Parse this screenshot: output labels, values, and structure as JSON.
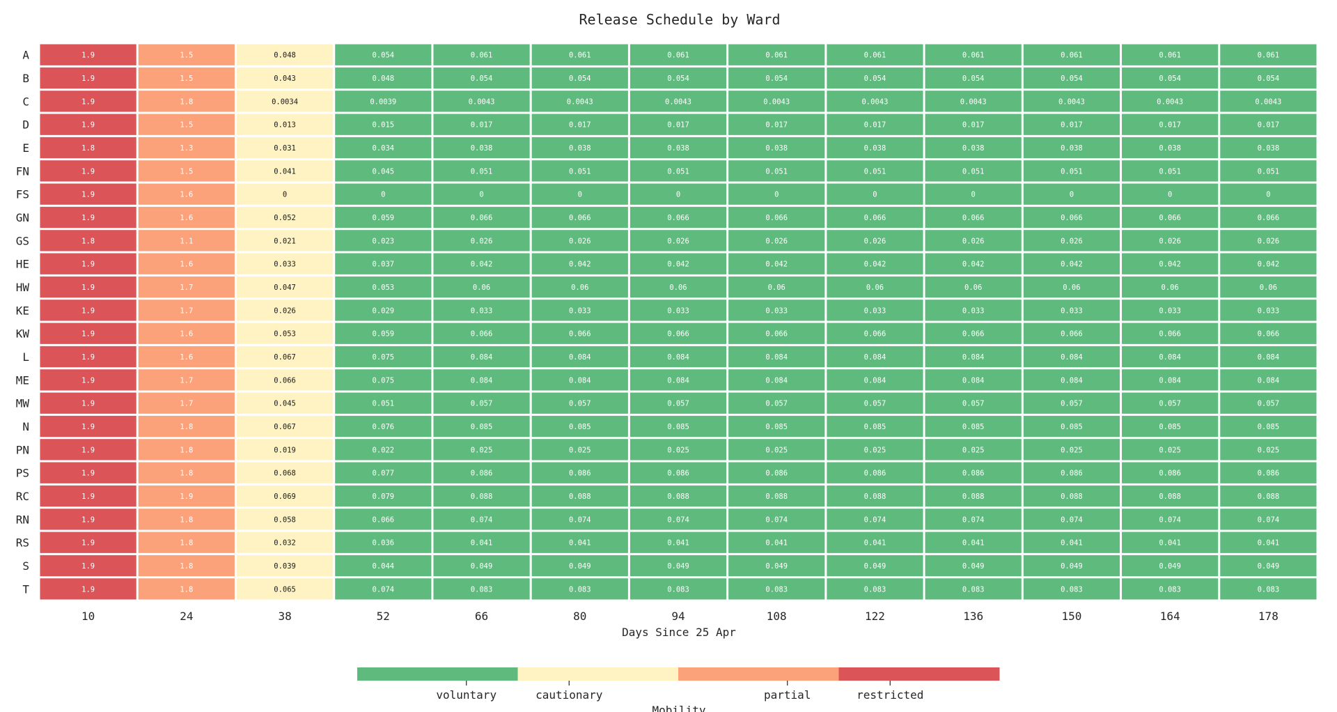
{
  "chart_data": {
    "type": "heatmap",
    "title": "Release Schedule by Ward",
    "xlabel": "Days Since 25 Apr",
    "ylabel": "",
    "x": [
      "10",
      "24",
      "38",
      "52",
      "66",
      "80",
      "94",
      "108",
      "122",
      "136",
      "150",
      "164",
      "178"
    ],
    "y": [
      "A",
      "B",
      "C",
      "D",
      "E",
      "FN",
      "FS",
      "GN",
      "GS",
      "HE",
      "HW",
      "KE",
      "KW",
      "L",
      "ME",
      "MW",
      "N",
      "PN",
      "PS",
      "RC",
      "RN",
      "RS",
      "S",
      "T"
    ],
    "values": [
      [
        "1.9",
        "1.5",
        "0.048",
        "0.054",
        "0.061",
        "0.061",
        "0.061",
        "0.061",
        "0.061",
        "0.061",
        "0.061",
        "0.061",
        "0.061"
      ],
      [
        "1.9",
        "1.5",
        "0.043",
        "0.048",
        "0.054",
        "0.054",
        "0.054",
        "0.054",
        "0.054",
        "0.054",
        "0.054",
        "0.054",
        "0.054"
      ],
      [
        "1.9",
        "1.8",
        "0.0034",
        "0.0039",
        "0.0043",
        "0.0043",
        "0.0043",
        "0.0043",
        "0.0043",
        "0.0043",
        "0.0043",
        "0.0043",
        "0.0043"
      ],
      [
        "1.9",
        "1.5",
        "0.013",
        "0.015",
        "0.017",
        "0.017",
        "0.017",
        "0.017",
        "0.017",
        "0.017",
        "0.017",
        "0.017",
        "0.017"
      ],
      [
        "1.8",
        "1.3",
        "0.031",
        "0.034",
        "0.038",
        "0.038",
        "0.038",
        "0.038",
        "0.038",
        "0.038",
        "0.038",
        "0.038",
        "0.038"
      ],
      [
        "1.9",
        "1.5",
        "0.041",
        "0.045",
        "0.051",
        "0.051",
        "0.051",
        "0.051",
        "0.051",
        "0.051",
        "0.051",
        "0.051",
        "0.051"
      ],
      [
        "1.9",
        "1.6",
        "0",
        "0",
        "0",
        "0",
        "0",
        "0",
        "0",
        "0",
        "0",
        "0",
        "0"
      ],
      [
        "1.9",
        "1.6",
        "0.052",
        "0.059",
        "0.066",
        "0.066",
        "0.066",
        "0.066",
        "0.066",
        "0.066",
        "0.066",
        "0.066",
        "0.066"
      ],
      [
        "1.8",
        "1.1",
        "0.021",
        "0.023",
        "0.026",
        "0.026",
        "0.026",
        "0.026",
        "0.026",
        "0.026",
        "0.026",
        "0.026",
        "0.026"
      ],
      [
        "1.9",
        "1.6",
        "0.033",
        "0.037",
        "0.042",
        "0.042",
        "0.042",
        "0.042",
        "0.042",
        "0.042",
        "0.042",
        "0.042",
        "0.042"
      ],
      [
        "1.9",
        "1.7",
        "0.047",
        "0.053",
        "0.06",
        "0.06",
        "0.06",
        "0.06",
        "0.06",
        "0.06",
        "0.06",
        "0.06",
        "0.06"
      ],
      [
        "1.9",
        "1.7",
        "0.026",
        "0.029",
        "0.033",
        "0.033",
        "0.033",
        "0.033",
        "0.033",
        "0.033",
        "0.033",
        "0.033",
        "0.033"
      ],
      [
        "1.9",
        "1.6",
        "0.053",
        "0.059",
        "0.066",
        "0.066",
        "0.066",
        "0.066",
        "0.066",
        "0.066",
        "0.066",
        "0.066",
        "0.066"
      ],
      [
        "1.9",
        "1.6",
        "0.067",
        "0.075",
        "0.084",
        "0.084",
        "0.084",
        "0.084",
        "0.084",
        "0.084",
        "0.084",
        "0.084",
        "0.084"
      ],
      [
        "1.9",
        "1.7",
        "0.066",
        "0.075",
        "0.084",
        "0.084",
        "0.084",
        "0.084",
        "0.084",
        "0.084",
        "0.084",
        "0.084",
        "0.084"
      ],
      [
        "1.9",
        "1.7",
        "0.045",
        "0.051",
        "0.057",
        "0.057",
        "0.057",
        "0.057",
        "0.057",
        "0.057",
        "0.057",
        "0.057",
        "0.057"
      ],
      [
        "1.9",
        "1.8",
        "0.067",
        "0.076",
        "0.085",
        "0.085",
        "0.085",
        "0.085",
        "0.085",
        "0.085",
        "0.085",
        "0.085",
        "0.085"
      ],
      [
        "1.9",
        "1.8",
        "0.019",
        "0.022",
        "0.025",
        "0.025",
        "0.025",
        "0.025",
        "0.025",
        "0.025",
        "0.025",
        "0.025",
        "0.025"
      ],
      [
        "1.9",
        "1.8",
        "0.068",
        "0.077",
        "0.086",
        "0.086",
        "0.086",
        "0.086",
        "0.086",
        "0.086",
        "0.086",
        "0.086",
        "0.086"
      ],
      [
        "1.9",
        "1.9",
        "0.069",
        "0.079",
        "0.088",
        "0.088",
        "0.088",
        "0.088",
        "0.088",
        "0.088",
        "0.088",
        "0.088",
        "0.088"
      ],
      [
        "1.9",
        "1.8",
        "0.058",
        "0.066",
        "0.074",
        "0.074",
        "0.074",
        "0.074",
        "0.074",
        "0.074",
        "0.074",
        "0.074",
        "0.074"
      ],
      [
        "1.9",
        "1.8",
        "0.032",
        "0.036",
        "0.041",
        "0.041",
        "0.041",
        "0.041",
        "0.041",
        "0.041",
        "0.041",
        "0.041",
        "0.041"
      ],
      [
        "1.9",
        "1.8",
        "0.039",
        "0.044",
        "0.049",
        "0.049",
        "0.049",
        "0.049",
        "0.049",
        "0.049",
        "0.049",
        "0.049",
        "0.049"
      ],
      [
        "1.9",
        "1.8",
        "0.065",
        "0.074",
        "0.083",
        "0.083",
        "0.083",
        "0.083",
        "0.083",
        "0.083",
        "0.083",
        "0.083",
        "0.083"
      ]
    ],
    "column_categories": [
      "restricted",
      "partial",
      "cautionary",
      "voluntary",
      "voluntary",
      "voluntary",
      "voluntary",
      "voluntary",
      "voluntary",
      "voluntary",
      "voluntary",
      "voluntary",
      "voluntary"
    ],
    "colorbar": {
      "label": "Mobility",
      "categories": [
        {
          "name": "voluntary",
          "color": "#5fba7d"
        },
        {
          "name": "cautionary",
          "color": "#fff3c4"
        },
        {
          "name": "partial",
          "color": "#fca27b"
        },
        {
          "name": "restricted",
          "color": "#db5558"
        }
      ]
    },
    "label_colors": {
      "on_dark": "#ffffff",
      "on_light": "#1a1a1a"
    },
    "grid": false
  }
}
